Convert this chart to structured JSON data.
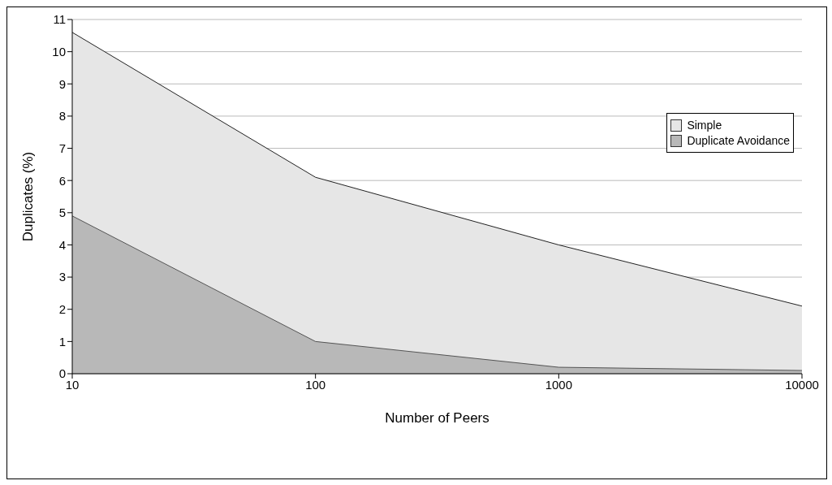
{
  "chart_data": {
    "type": "area",
    "xlabel": "Number of Peers",
    "ylabel": "Duplicates (%)",
    "x": [
      10,
      100,
      1000,
      10000
    ],
    "series": [
      {
        "name": "Simple",
        "color": "#e6e6e6",
        "values": [
          10.6,
          6.1,
          4.0,
          2.1
        ]
      },
      {
        "name": "Duplicate Avoidance",
        "color": "#b8b8b8",
        "values": [
          4.9,
          1.0,
          0.2,
          0.1
        ]
      }
    ],
    "log": "x",
    "xlim": [
      10,
      10000
    ],
    "xticks": [
      10,
      100,
      1000,
      10000
    ],
    "ylim": [
      0,
      11
    ],
    "yticks": [
      0,
      1,
      2,
      3,
      4,
      5,
      6,
      7,
      8,
      9,
      10,
      11
    ],
    "grid": "y",
    "legend": "right"
  }
}
